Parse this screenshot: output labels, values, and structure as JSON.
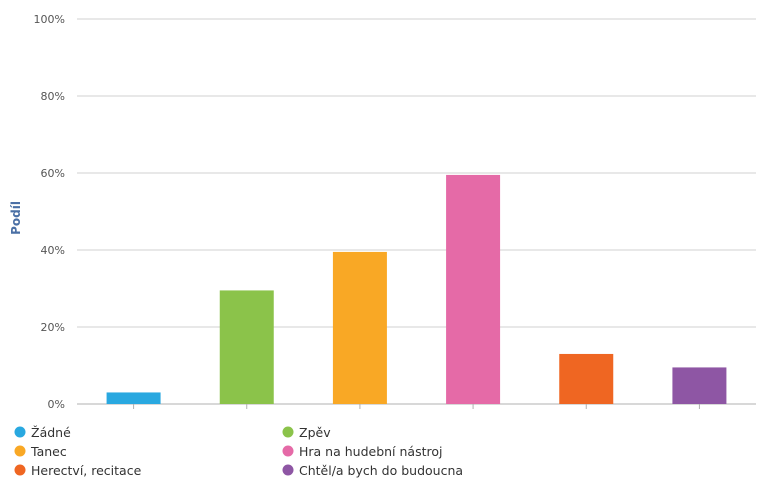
{
  "chart_data": {
    "type": "bar",
    "categories": [
      "Žádné",
      "Zpěv",
      "Tanec",
      "Hra na hudební nástroj",
      "Herectví, recitace",
      "Chtěl/a bych do budoucna"
    ],
    "values": [
      3,
      29.5,
      39.5,
      59.5,
      13,
      9.5
    ],
    "colors": [
      "#29a8e0",
      "#8bc34a",
      "#f9a825",
      "#e56aa7",
      "#ef6622",
      "#8e56a4"
    ],
    "ylabel": "Podíl",
    "ylim": [
      0,
      100
    ],
    "yticks": [
      0,
      20,
      40,
      60,
      80,
      100
    ],
    "ytick_labels": [
      "0%",
      "20%",
      "40%",
      "60%",
      "80%",
      "100%"
    ],
    "grid": true,
    "legend_position": "bottom"
  }
}
